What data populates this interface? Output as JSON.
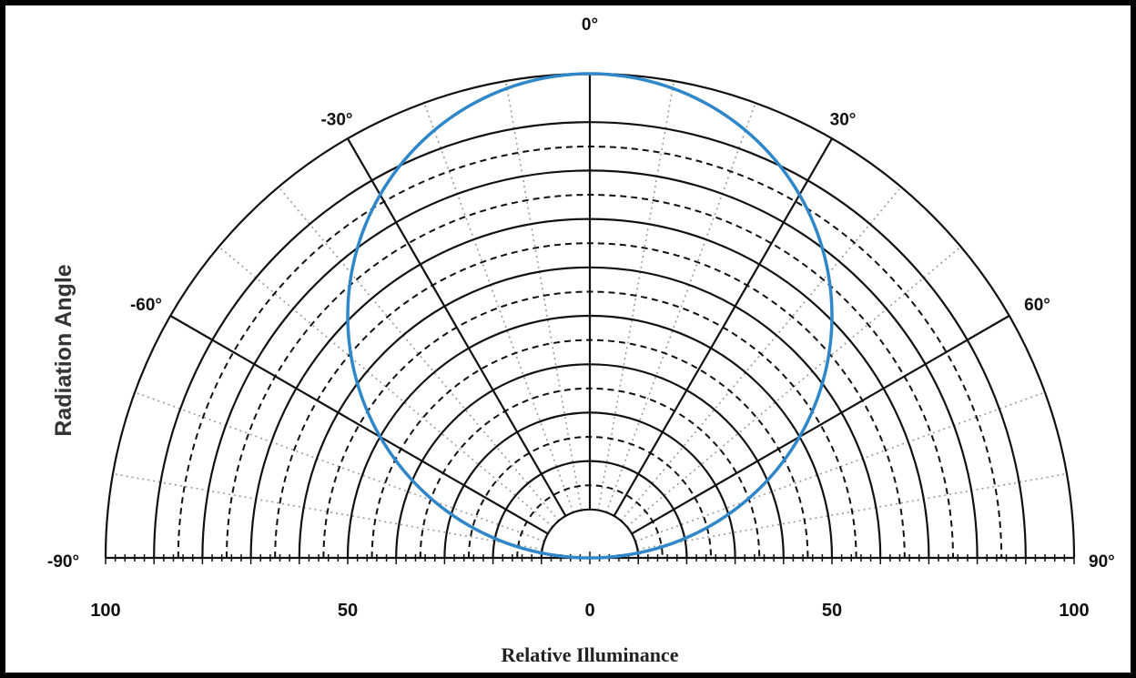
{
  "chart_data": {
    "type": "polar",
    "title": "",
    "xlabel": "Relative Illuminance",
    "ylabel": "Radiation Angle",
    "radial_range": [
      0,
      100
    ],
    "radial_tick_labels": [
      "100",
      "50",
      "0",
      "50",
      "100"
    ],
    "radial_tick_values": [
      -100,
      -50,
      0,
      50,
      100
    ],
    "angle_range_deg": [
      -90,
      90
    ],
    "angle_labels": [
      {
        "angle": -90,
        "text": "-90°"
      },
      {
        "angle": -60,
        "text": "-60°"
      },
      {
        "angle": -30,
        "text": "-30°"
      },
      {
        "angle": 0,
        "text": "0°"
      },
      {
        "angle": 30,
        "text": "30°"
      },
      {
        "angle": 60,
        "text": "60°"
      },
      {
        "angle": 90,
        "text": "90°"
      }
    ],
    "grid": {
      "solid_rings": [
        10,
        20,
        30,
        40,
        50,
        60,
        70,
        80,
        90,
        100
      ],
      "dashed_rings": [],
      "major_spokes_deg": [
        -60,
        -30,
        0,
        30,
        60
      ],
      "minor_spokes_deg": [
        -80,
        -70,
        -50,
        -40,
        -20,
        -10,
        10,
        20,
        40,
        50,
        70,
        80
      ]
    },
    "series": [
      {
        "pattern": "lambertian",
        "color": "#2f86c8",
        "points": [
          {
            "angle": -90,
            "r": 0
          },
          {
            "angle": -75,
            "r": 26
          },
          {
            "angle": -60,
            "r": 50
          },
          {
            "angle": -45,
            "r": 71
          },
          {
            "angle": -30,
            "r": 87
          },
          {
            "angle": -15,
            "r": 97
          },
          {
            "angle": 0,
            "r": 100
          },
          {
            "angle": 15,
            "r": 97
          },
          {
            "angle": 30,
            "r": 87
          },
          {
            "angle": 45,
            "r": 71
          },
          {
            "angle": 60,
            "r": 50
          },
          {
            "angle": 75,
            "r": 26
          },
          {
            "angle": 90,
            "r": 0
          }
        ]
      }
    ]
  },
  "colors": {
    "curve": "#2f86c8",
    "grid": "#111111",
    "minor_grid": "#9a9a9a"
  }
}
